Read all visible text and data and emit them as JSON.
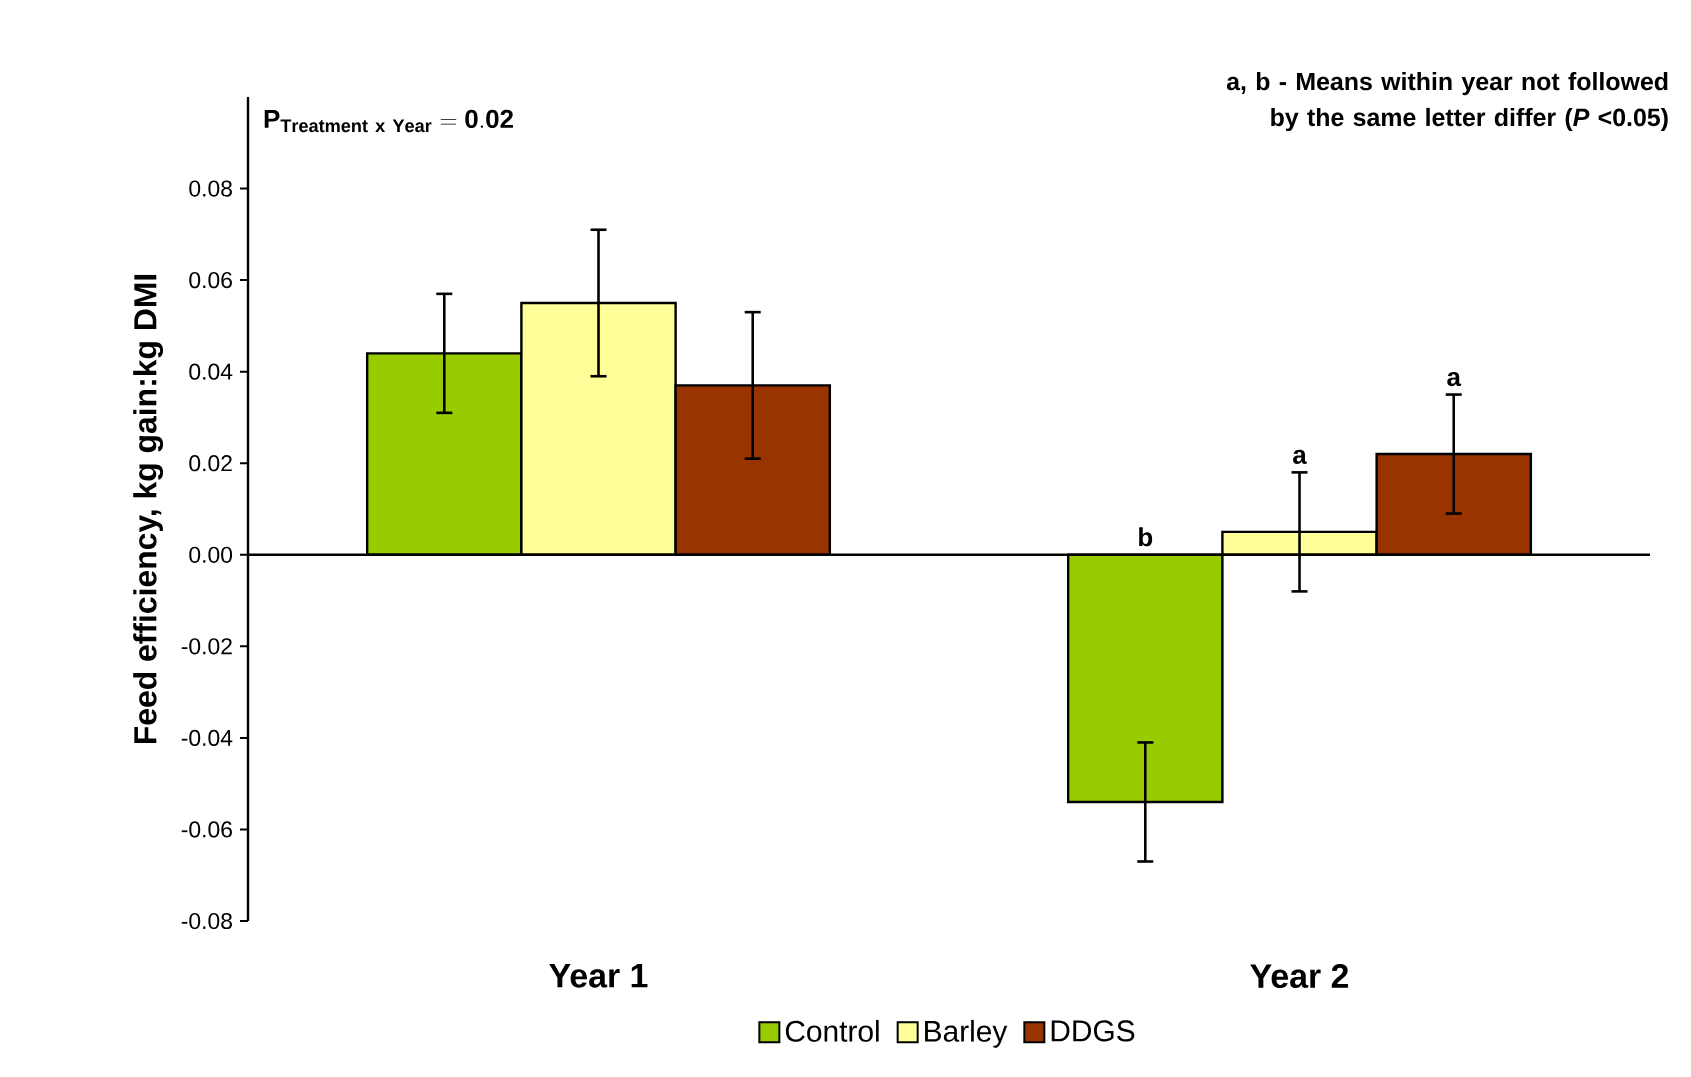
{
  "chart_data": {
    "type": "bar",
    "ylabel": "Feed efficiency, kg gain:kg DMI",
    "categories": [
      "Year 1",
      "Year 2"
    ],
    "series": [
      {
        "name": "Control",
        "color": "#99cc00",
        "values": [
          0.044,
          -0.054
        ],
        "errors": [
          0.013,
          0.013
        ],
        "value_labels": [
          null,
          "b"
        ]
      },
      {
        "name": "Barley",
        "color": "#ffff99",
        "values": [
          0.055,
          0.005
        ],
        "errors": [
          0.016,
          0.013
        ],
        "value_labels": [
          null,
          "a"
        ]
      },
      {
        "name": "DDGS",
        "color": "#993300",
        "values": [
          0.037,
          0.022
        ],
        "errors": [
          0.016,
          0.013
        ],
        "value_labels": [
          null,
          "a"
        ]
      }
    ],
    "ylim": [
      -0.08,
      0.1
    ],
    "yticks": [
      -0.08,
      -0.06,
      -0.04,
      -0.02,
      {
        "value": 0,
        "label": "0.00"
      },
      0.02,
      0.04,
      0.06,
      0.08
    ],
    "legend": "bottom",
    "annotations": [
      "\\mathbf{P_{Treatment\\ x\\ Year} = 0.02}",
      "a, b - Means within year not followed by the same letter differ (*P* <0.05)"
    ]
  }
}
